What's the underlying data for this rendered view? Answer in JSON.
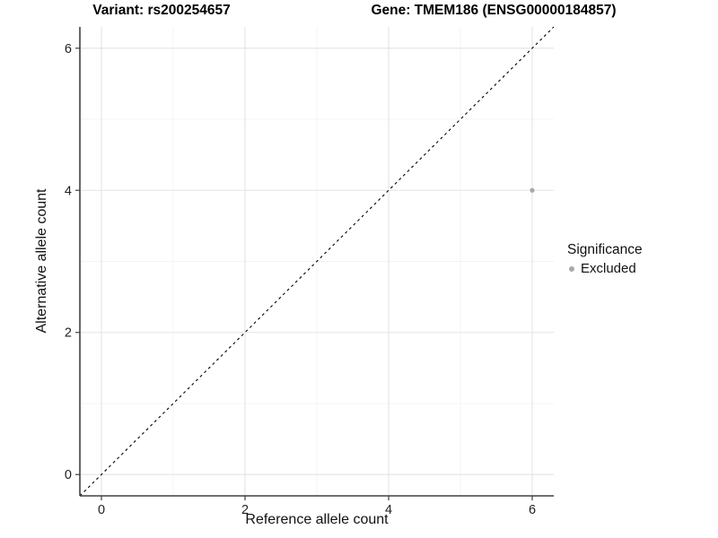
{
  "figure": {
    "background": "#ffffff",
    "titles": {
      "variant": "Variant: rs200254657",
      "gene": "Gene: TMEM186 (ENSG00000184857)"
    },
    "legend": {
      "title": "Significance",
      "items": [
        {
          "label": "Excluded",
          "color": "#a8a8a8"
        }
      ]
    }
  },
  "chart_data": {
    "type": "scatter",
    "title_left": "Variant: rs200254657",
    "title_right": "Gene: TMEM186 (ENSG00000184857)",
    "xlabel": "Reference allele count",
    "ylabel": "Alternative allele count",
    "xlim": [
      -0.3,
      6.3
    ],
    "ylim": [
      -0.3,
      6.3
    ],
    "x_ticks": [
      0,
      2,
      4,
      6
    ],
    "y_ticks": [
      0,
      2,
      4,
      6
    ],
    "x_minor_ticks": [
      1,
      3,
      5
    ],
    "y_minor_ticks": [
      1,
      3,
      5
    ],
    "grid": true,
    "legend_position": "right",
    "series": [
      {
        "name": "Excluded",
        "color": "#a8a8a8",
        "points": [
          {
            "x": 6,
            "y": 4
          }
        ]
      }
    ],
    "reference_line": {
      "kind": "identity",
      "style": "dashed",
      "color": "#000000"
    },
    "colors": {
      "grid_major": "#e4e4e4",
      "grid_minor": "#f1f1f1",
      "axis_line": "#404040",
      "tick_mark": "#404040",
      "tick_label": "#1f1f1f",
      "point": "#a8a8a8"
    }
  }
}
